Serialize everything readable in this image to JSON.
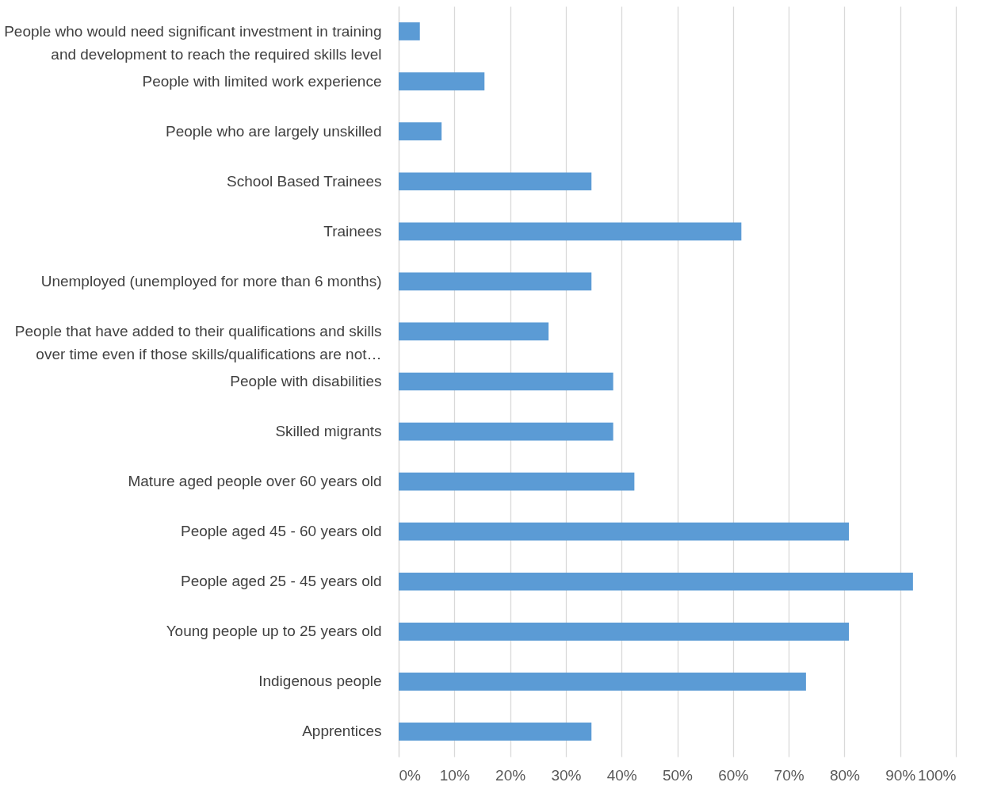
{
  "chart_data": {
    "type": "bar",
    "orientation": "horizontal",
    "categories": [
      "People who would need significant investment in training and development to reach the required skills level",
      "People with limited work experience",
      "People who are largely unskilled",
      "School Based Trainees",
      "Trainees",
      "Unemployed (unemployed for more than 6 months)",
      "People that have added to their qualifications and skills over time even if those skills/qualifications are not…",
      "People with disabilities",
      "Skilled migrants",
      "Mature aged people over 60 years old",
      "People aged 45 - 60 years old",
      "People aged 25 - 45 years old",
      "Young people up to 25 years old",
      "Indigenous people",
      "Apprentices"
    ],
    "values": [
      3.8,
      15.4,
      7.7,
      34.6,
      61.5,
      34.6,
      26.9,
      38.5,
      38.5,
      42.3,
      80.8,
      92.3,
      80.8,
      73.1,
      34.6
    ],
    "color": "#5b9bd5",
    "xlim": [
      0,
      100
    ],
    "xticks": [
      {
        "value": 0,
        "label": "0%"
      },
      {
        "value": 10,
        "label": "10%"
      },
      {
        "value": 20,
        "label": "20%"
      },
      {
        "value": 30,
        "label": "30%"
      },
      {
        "value": 40,
        "label": "40%"
      },
      {
        "value": 50,
        "label": "50%"
      },
      {
        "value": 60,
        "label": "60%"
      },
      {
        "value": 70,
        "label": "70%"
      },
      {
        "value": 80,
        "label": "80%"
      },
      {
        "value": 90,
        "label": "90%"
      },
      {
        "value": 100,
        "label": "100%"
      }
    ],
    "grid": "x"
  }
}
